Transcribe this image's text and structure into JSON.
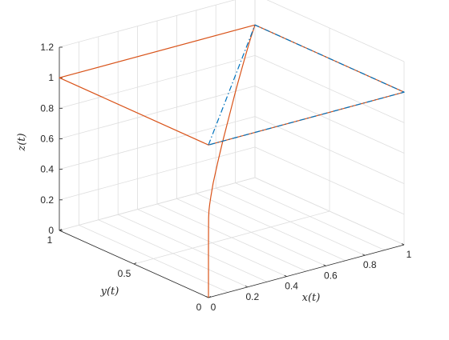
{
  "chart_data": {
    "type": "line3d",
    "title": "",
    "xlabel": "x(t)",
    "ylabel": "y(t)",
    "zlabel": "z(t)",
    "xlim": [
      0,
      1
    ],
    "ylim": [
      0,
      1
    ],
    "zlim": [
      0,
      1.2
    ],
    "grid": true,
    "x_ticks": [
      "0",
      "0.2",
      "0.4",
      "0.6",
      "0.8",
      "1"
    ],
    "y_ticks": [
      "0",
      "0.5",
      "1"
    ],
    "z_ticks": [
      "0",
      "0.2",
      "0.4",
      "0.6",
      "0.8",
      "1",
      "1.2"
    ],
    "series": [
      {
        "style": "solid",
        "color": "#D95319",
        "points": [
          [
            0,
            0,
            0
          ],
          [
            0,
            0,
            0.3
          ],
          [
            0.001,
            0.001,
            0.45
          ],
          [
            0.004,
            0.004,
            0.52
          ],
          [
            0.01,
            0.01,
            0.56
          ],
          [
            0.025,
            0.025,
            0.59
          ],
          [
            0.05,
            0.05,
            0.62
          ],
          [
            0.1,
            0.1,
            0.67
          ],
          [
            0.2,
            0.2,
            0.73
          ],
          [
            0.3,
            0.3,
            0.78
          ],
          [
            0.4,
            0.4,
            0.82
          ],
          [
            0.5,
            0.5,
            0.86
          ],
          [
            0.6,
            0.6,
            0.9
          ],
          [
            0.7,
            0.7,
            0.93
          ],
          [
            0.8,
            0.8,
            0.96
          ],
          [
            0.9,
            0.9,
            0.985
          ],
          [
            1,
            1,
            1
          ],
          [
            1,
            0,
            1
          ],
          [
            0,
            0,
            1
          ],
          [
            0,
            1,
            1
          ],
          [
            1,
            1,
            1
          ]
        ]
      },
      {
        "style": "dashdot",
        "color": "#0072BD",
        "points": [
          [
            0,
            0,
            1
          ],
          [
            1,
            1,
            1
          ],
          [
            1,
            0,
            1
          ],
          [
            0,
            0,
            1
          ]
        ]
      }
    ]
  }
}
